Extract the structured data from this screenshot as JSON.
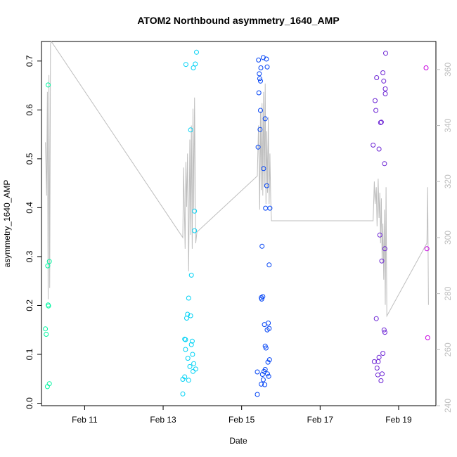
{
  "chart_data": {
    "type": "scatter",
    "title": "ATOM2 Northbound asymmetry_1640_AMP",
    "xlabel": "Date",
    "ylabel": "asymmetry_1640_AMP",
    "x_ticks": [
      "Feb 11",
      "Feb 13",
      "Feb 15",
      "Feb 17",
      "Feb 19"
    ],
    "x_tick_days": [
      11,
      13,
      15,
      17,
      19
    ],
    "xlim": [
      9.9,
      19.95
    ],
    "ylim": [
      -0.005,
      0.74
    ],
    "y_ticks": [
      0.0,
      0.1,
      0.2,
      0.3,
      0.4,
      0.5,
      0.6,
      0.7
    ],
    "y2lim": [
      240,
      370
    ],
    "y2_ticks": [
      240,
      260,
      280,
      300,
      320,
      340,
      360
    ],
    "grid": false,
    "colors": {
      "axis": "#000000",
      "right_axis": "#bebebe",
      "line": "#bebebe",
      "c1": "#00f5a0",
      "c2": "#00d2f5",
      "c3": "#0042f5",
      "c4": "#6a21d4",
      "c5": "#c700e0"
    },
    "series": [
      {
        "color_key": "c1",
        "x": [
          10.0,
          10.02,
          10.05,
          10.06,
          10.07,
          10.07,
          10.08,
          10.1
        ],
        "y": [
          0.152,
          0.141,
          0.034,
          0.281,
          0.651,
          0.201,
          0.199,
          0.04
        ]
      },
      {
        "color_key": "c1",
        "x": [
          10.1
        ],
        "y": [
          0.29
        ]
      },
      {
        "color_key": "c2",
        "x": [
          13.5,
          13.5,
          13.55,
          13.55,
          13.57,
          13.57,
          13.58,
          13.6,
          13.62,
          13.63,
          13.65,
          13.65,
          13.68,
          13.7,
          13.7,
          13.72,
          13.72,
          13.74,
          13.75,
          13.76,
          13.77,
          13.78,
          13.8,
          13.8,
          13.82,
          13.83
        ],
        "y": [
          0.019,
          0.049,
          0.131,
          0.054,
          0.13,
          0.11,
          0.693,
          0.174,
          0.182,
          0.092,
          0.047,
          0.215,
          0.075,
          0.559,
          0.179,
          0.262,
          0.12,
          0.127,
          0.1,
          0.065,
          0.686,
          0.081,
          0.353,
          0.393,
          0.694,
          0.07
        ]
      },
      {
        "color_key": "c2",
        "x": [
          13.85
        ],
        "y": [
          0.718
        ]
      },
      {
        "color_key": "c3",
        "x": [
          15.4,
          15.4,
          15.42,
          15.43,
          15.44,
          15.45,
          15.46,
          15.47,
          15.48,
          15.49,
          15.5,
          15.5,
          15.51,
          15.52,
          15.53,
          15.54,
          15.55,
          15.55,
          15.56,
          15.57,
          15.58,
          15.59,
          15.6,
          15.6,
          15.61,
          15.62,
          15.63,
          15.64,
          15.65,
          15.66,
          15.67,
          15.68,
          15.69,
          15.7,
          15.7,
          15.71
        ],
        "y": [
          0.064,
          0.018,
          0.524,
          0.702,
          0.635,
          0.674,
          0.664,
          0.56,
          0.599,
          0.686,
          0.039,
          0.216,
          0.213,
          0.321,
          0.059,
          0.218,
          0.707,
          0.048,
          0.48,
          0.065,
          0.161,
          0.038,
          0.582,
          0.117,
          0.399,
          0.113,
          0.704,
          0.445,
          0.15,
          0.06,
          0.084,
          0.164,
          0.055,
          0.283,
          0.153,
          0.089
        ]
      },
      {
        "color_key": "c3",
        "x": [
          15.48,
          15.6,
          15.65,
          15.72
        ],
        "y": [
          0.659,
          0.069,
          0.688,
          0.399
        ]
      },
      {
        "color_key": "c4",
        "x": [
          18.35,
          18.38,
          18.4,
          18.42,
          18.43,
          18.44,
          18.45,
          18.47,
          18.48,
          18.5,
          18.5,
          18.52,
          18.54,
          18.55,
          18.56,
          18.57,
          18.58,
          18.6,
          18.62,
          18.63,
          18.65,
          18.66,
          18.66
        ],
        "y": [
          0.528,
          0.085,
          0.619,
          0.599,
          0.173,
          0.666,
          0.072,
          0.058,
          0.085,
          0.52,
          0.094,
          0.344,
          0.574,
          0.046,
          0.575,
          0.291,
          0.06,
          0.102,
          0.659,
          0.15,
          0.316,
          0.633,
          0.643
        ]
      },
      {
        "color_key": "c4",
        "x": [
          18.6,
          18.64,
          18.65,
          18.67
        ],
        "y": [
          0.676,
          0.49,
          0.145,
          0.716
        ]
      },
      {
        "color_key": "c5",
        "x": [
          19.7,
          19.72,
          19.74
        ],
        "y": [
          0.686,
          0.316,
          0.134
        ]
      }
    ],
    "line_series": {
      "x": [
        10.0,
        10.03,
        10.05,
        10.07,
        10.09,
        10.11,
        10.13,
        10.15,
        13.5,
        13.52,
        13.56,
        13.58,
        13.6,
        13.62,
        13.65,
        13.68,
        13.7,
        13.72,
        13.74,
        13.76,
        13.78,
        13.8,
        13.83,
        13.86,
        15.4,
        15.43,
        15.46,
        15.48,
        15.5,
        15.52,
        15.54,
        15.56,
        15.58,
        15.6,
        15.62,
        15.64,
        15.66,
        15.68,
        15.7,
        15.72,
        15.74,
        15.76,
        18.35,
        18.38,
        18.4,
        18.43,
        18.45,
        18.48,
        18.5,
        18.52,
        18.54,
        18.56,
        18.58,
        18.6,
        18.62,
        18.64,
        18.66,
        18.68,
        18.7,
        19.72,
        19.74,
        19.76
      ],
      "y": [
        334,
        315,
        352,
        278,
        358,
        282,
        369,
        370,
        300,
        325,
        296,
        327,
        311,
        330,
        288,
        335,
        301,
        340,
        296,
        346,
        310,
        350,
        298,
        302,
        322,
        340,
        310,
        345,
        317,
        348,
        315,
        352,
        318,
        355,
        312,
        338,
        316,
        343,
        312,
        330,
        314,
        306,
        306,
        320,
        312,
        318,
        304,
        321,
        307,
        316,
        298,
        314,
        291,
        305,
        285,
        310,
        276,
        318,
        272,
        298,
        318,
        276
      ]
    }
  }
}
